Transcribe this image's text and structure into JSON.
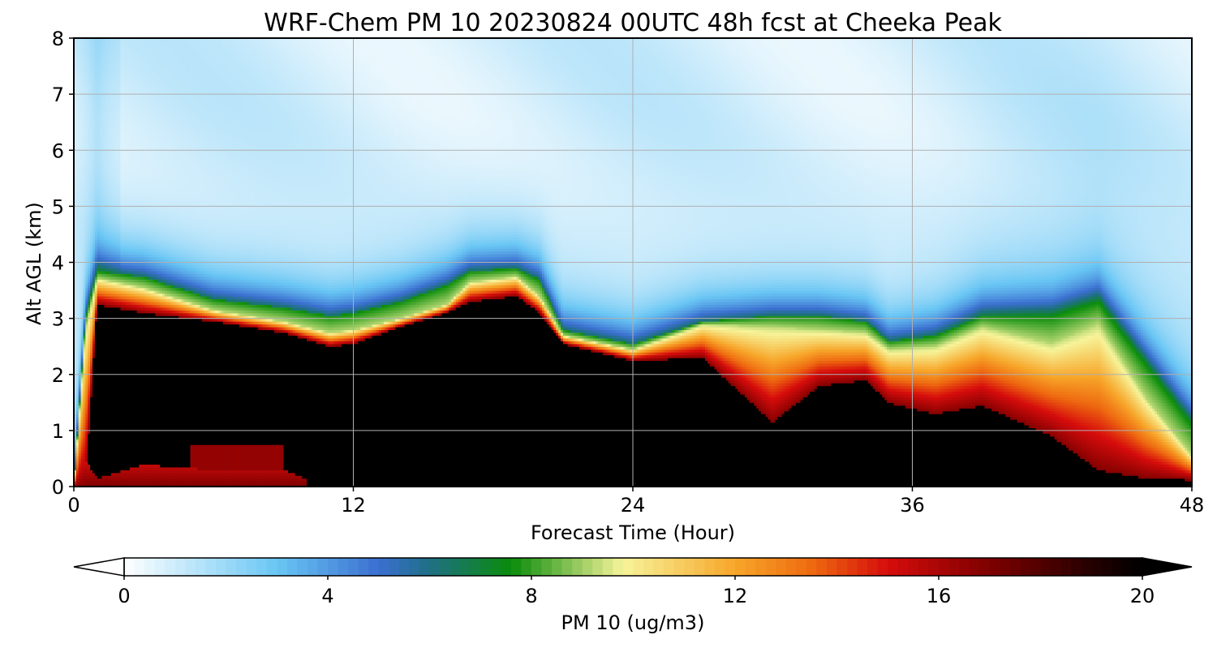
{
  "chart_data": {
    "type": "heatmap",
    "title": "WRF-Chem PM 10  20230824 00UTC 48h fcst at Cheeka Peak",
    "xlabel": "Forecast Time (Hour)",
    "ylabel": "Alt AGL (km)",
    "xlim": [
      0,
      48
    ],
    "ylim": [
      0,
      8
    ],
    "x_ticks": [
      "0",
      "12",
      "24",
      "36",
      "48"
    ],
    "y_ticks": [
      "0",
      "1",
      "2",
      "3",
      "4",
      "5",
      "6",
      "7",
      "8"
    ],
    "grid": true,
    "colorbar": {
      "label": "PM 10  (ug/m3)",
      "range": [
        0,
        20
      ],
      "ticks": [
        "0",
        "4",
        "8",
        "12",
        "16",
        "20"
      ],
      "extend": "both",
      "stops": [
        {
          "v": 0,
          "c": "#ffffff"
        },
        {
          "v": 3,
          "c": "#69c6f4"
        },
        {
          "v": 5,
          "c": "#3b6fd0"
        },
        {
          "v": 6,
          "c": "#1f6f85"
        },
        {
          "v": 7.6,
          "c": "#0a8c0a"
        },
        {
          "v": 9.8,
          "c": "#f7f49a"
        },
        {
          "v": 12,
          "c": "#f7a62a"
        },
        {
          "v": 13.5,
          "c": "#ee6a10"
        },
        {
          "v": 15,
          "c": "#d60c0c"
        },
        {
          "v": 17,
          "c": "#7e0000"
        },
        {
          "v": 19,
          "c": "#250000"
        },
        {
          "v": 20,
          "c": "#000000"
        }
      ]
    },
    "profiles": [
      {
        "t": 0,
        "top": 0.0,
        "green": 0.0,
        "mid": 0.0,
        "surf": 0.0
      },
      {
        "t": 0.5,
        "top": 3.0,
        "green": 2.8,
        "mid": 0.0,
        "surf": 0.5
      },
      {
        "t": 1,
        "top": 3.85,
        "green": 3.72,
        "mid": 3.25,
        "surf": 0.15
      },
      {
        "t": 3,
        "top": 3.75,
        "green": 3.55,
        "mid": 3.1,
        "surf": 0.4
      },
      {
        "t": 6,
        "top": 3.35,
        "green": 3.15,
        "mid": 2.95,
        "surf": 0.3
      },
      {
        "t": 9,
        "top": 3.2,
        "green": 2.95,
        "mid": 2.75,
        "surf": 0.3
      },
      {
        "t": 11,
        "top": 3.05,
        "green": 2.75,
        "mid": 2.5,
        "surf": 0.0
      },
      {
        "t": 12,
        "top": 3.1,
        "green": 2.8,
        "mid": 2.55,
        "surf": 0.0
      },
      {
        "t": 14,
        "top": 3.3,
        "green": 3.0,
        "mid": 2.85,
        "surf": 0.0
      },
      {
        "t": 16,
        "top": 3.6,
        "green": 3.25,
        "mid": 3.1,
        "surf": 0.0
      },
      {
        "t": 17,
        "top": 3.85,
        "green": 3.65,
        "mid": 3.3,
        "surf": 0.0
      },
      {
        "t": 19,
        "top": 3.9,
        "green": 3.75,
        "mid": 3.4,
        "surf": 0.0
      },
      {
        "t": 20,
        "top": 3.7,
        "green": 3.4,
        "mid": 3.1,
        "surf": 0.0
      },
      {
        "t": 21,
        "top": 2.8,
        "green": 2.7,
        "mid": 2.55,
        "surf": 0.0
      },
      {
        "t": 24,
        "top": 2.55,
        "green": 2.45,
        "mid": 2.25,
        "surf": 0.0
      },
      {
        "t": 27,
        "top": 2.95,
        "green": 2.9,
        "mid": 2.3,
        "surf": 0.0
      },
      {
        "t": 30,
        "top": 3.05,
        "green": 2.85,
        "mid": 1.15,
        "surf": 0.0
      },
      {
        "t": 32,
        "top": 3.05,
        "green": 2.8,
        "mid": 1.8,
        "surf": 0.0
      },
      {
        "t": 34,
        "top": 2.95,
        "green": 2.75,
        "mid": 1.9,
        "surf": 0.0
      },
      {
        "t": 35,
        "top": 2.6,
        "green": 2.45,
        "mid": 1.5,
        "surf": 0.0
      },
      {
        "t": 37,
        "top": 2.7,
        "green": 2.5,
        "mid": 1.3,
        "surf": 0.0
      },
      {
        "t": 39,
        "top": 3.05,
        "green": 2.85,
        "mid": 1.45,
        "surf": 0.0
      },
      {
        "t": 42,
        "top": 3.05,
        "green": 2.55,
        "mid": 0.9,
        "surf": 0.0
      },
      {
        "t": 44,
        "top": 3.3,
        "green": 2.9,
        "mid": 0.3,
        "surf": 0.0
      },
      {
        "t": 46,
        "top": 2.2,
        "green": 1.6,
        "mid": 0.15,
        "surf": 0.0
      },
      {
        "t": 48,
        "top": 1.1,
        "green": 0.55,
        "mid": 0.12,
        "surf": 0.0
      }
    ]
  }
}
